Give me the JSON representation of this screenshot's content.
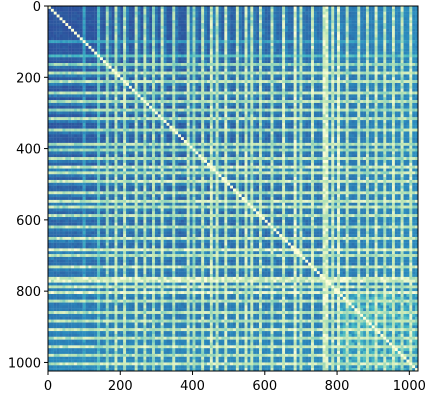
{
  "chart_data": {
    "type": "heatmap",
    "title": "",
    "xlabel": "",
    "ylabel": "",
    "n": 1024,
    "xlim": [
      0,
      1024
    ],
    "ylim": [
      1024,
      0
    ],
    "x_ticks": [
      0,
      200,
      400,
      600,
      800,
      1000
    ],
    "y_ticks": [
      0,
      200,
      400,
      600,
      800,
      1000
    ],
    "x_tick_labels": [
      "0",
      "200",
      "400",
      "600",
      "800",
      "1000"
    ],
    "y_tick_labels": [
      "0",
      "200",
      "400",
      "600",
      "800",
      "1000"
    ],
    "colormap": [
      "#313695",
      "#2c5aa0",
      "#2b8cbe",
      "#41b6c4",
      "#7fcdbb",
      "#c7e9b4",
      "#ffffd9"
    ],
    "colorbar": false,
    "grid": false,
    "symmetric": true,
    "diagonal_value": 1.0,
    "background_level": 0.12,
    "bright_lines": [
      {
        "index": 100,
        "strength": 0.45
      },
      {
        "index": 140,
        "strength": 0.6
      },
      {
        "index": 165,
        "strength": 0.8
      },
      {
        "index": 190,
        "strength": 0.9
      },
      {
        "index": 215,
        "strength": 0.9
      },
      {
        "index": 245,
        "strength": 0.9
      },
      {
        "index": 270,
        "strength": 0.9
      },
      {
        "index": 290,
        "strength": 0.85
      },
      {
        "index": 315,
        "strength": 0.9
      },
      {
        "index": 345,
        "strength": 0.85
      },
      {
        "index": 385,
        "strength": 0.9
      },
      {
        "index": 400,
        "strength": 0.8
      },
      {
        "index": 425,
        "strength": 0.9
      },
      {
        "index": 450,
        "strength": 0.95
      },
      {
        "index": 470,
        "strength": 0.9
      },
      {
        "index": 495,
        "strength": 0.95
      },
      {
        "index": 520,
        "strength": 0.9
      },
      {
        "index": 545,
        "strength": 0.95
      },
      {
        "index": 565,
        "strength": 0.9
      },
      {
        "index": 590,
        "strength": 0.9
      },
      {
        "index": 620,
        "strength": 0.9
      },
      {
        "index": 650,
        "strength": 0.95
      },
      {
        "index": 680,
        "strength": 1.0
      },
      {
        "index": 700,
        "strength": 0.9
      },
      {
        "index": 730,
        "strength": 0.95
      },
      {
        "index": 760,
        "strength": 1.0
      },
      {
        "index": 775,
        "strength": 1.0
      },
      {
        "index": 790,
        "strength": 0.95
      },
      {
        "index": 800,
        "strength": 1.0
      },
      {
        "index": 830,
        "strength": 0.9
      },
      {
        "index": 860,
        "strength": 0.9
      },
      {
        "index": 880,
        "strength": 0.9
      },
      {
        "index": 905,
        "strength": 0.95
      },
      {
        "index": 930,
        "strength": 0.9
      },
      {
        "index": 955,
        "strength": 0.95
      },
      {
        "index": 980,
        "strength": 0.9
      },
      {
        "index": 1005,
        "strength": 0.95
      }
    ],
    "block_region": {
      "start": 800,
      "end": 1024,
      "level": 0.45
    }
  }
}
